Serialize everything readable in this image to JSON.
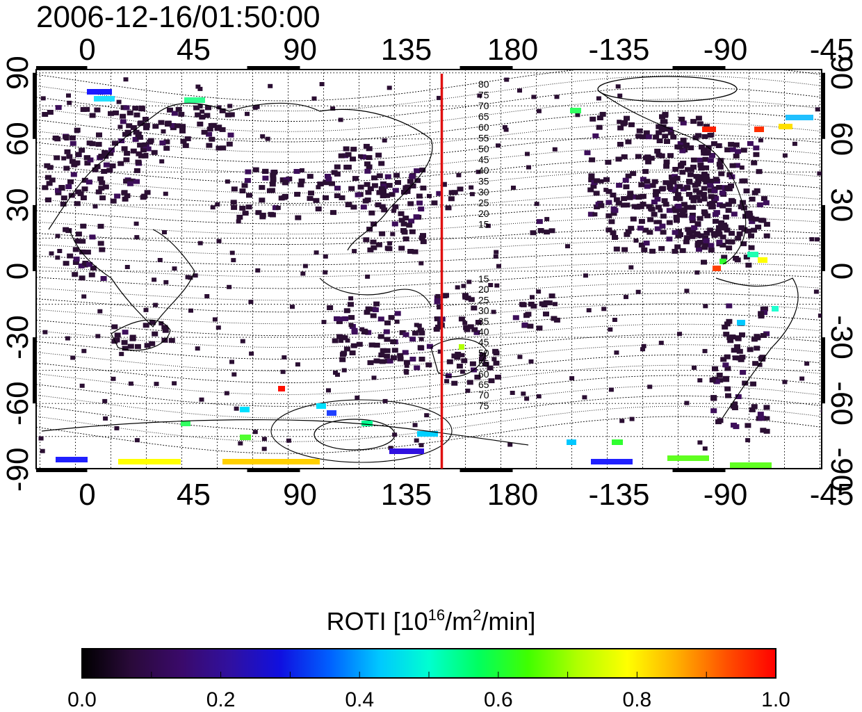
{
  "title": "2006-12-16/01:50:00",
  "map": {
    "lon_ticks_top": [
      "0",
      "45",
      "90",
      "135",
      "180",
      "-135",
      "-90",
      "-45"
    ],
    "lon_ticks_bottom": [
      "0",
      "45",
      "90",
      "135",
      "180",
      "-135",
      "-90",
      "-45"
    ],
    "lat_ticks_left": [
      "90",
      "60",
      "30",
      "0",
      "-30",
      "-60",
      "-90"
    ],
    "lat_ticks_right": [
      "90",
      "60",
      "30",
      "0",
      "-30",
      "-60",
      "-90"
    ],
    "meridian_line_lon": 150,
    "meridian_line_color": "#e01010",
    "contour_labels_north": [
      "80",
      "75",
      "70",
      "65",
      "60",
      "55",
      "50",
      "45",
      "40",
      "35",
      "30",
      "25",
      "20",
      "15"
    ],
    "contour_labels_south": [
      "15",
      "20",
      "25",
      "30",
      "35",
      "40",
      "45",
      "50",
      "55",
      "60",
      "65",
      "70",
      "75"
    ]
  },
  "colorbar": {
    "label_prefix": "ROTI  [10",
    "label_exp1": "16",
    "label_mid": "/m",
    "label_exp2": "2",
    "label_suffix": "/min]",
    "min": 0.0,
    "max": 1.0,
    "tick_labels": [
      "0.0",
      "0.2",
      "0.4",
      "0.6",
      "0.8",
      "1.0"
    ],
    "colors": [
      "#000000",
      "#2a0a3a",
      "#3a0a6a",
      "#3010a0",
      "#1010e0",
      "#0060ff",
      "#00c8ff",
      "#00ffd0",
      "#00ff60",
      "#40ff00",
      "#b0ff00",
      "#ffff00",
      "#ffb000",
      "#ff5000",
      "#ff0000"
    ]
  }
}
